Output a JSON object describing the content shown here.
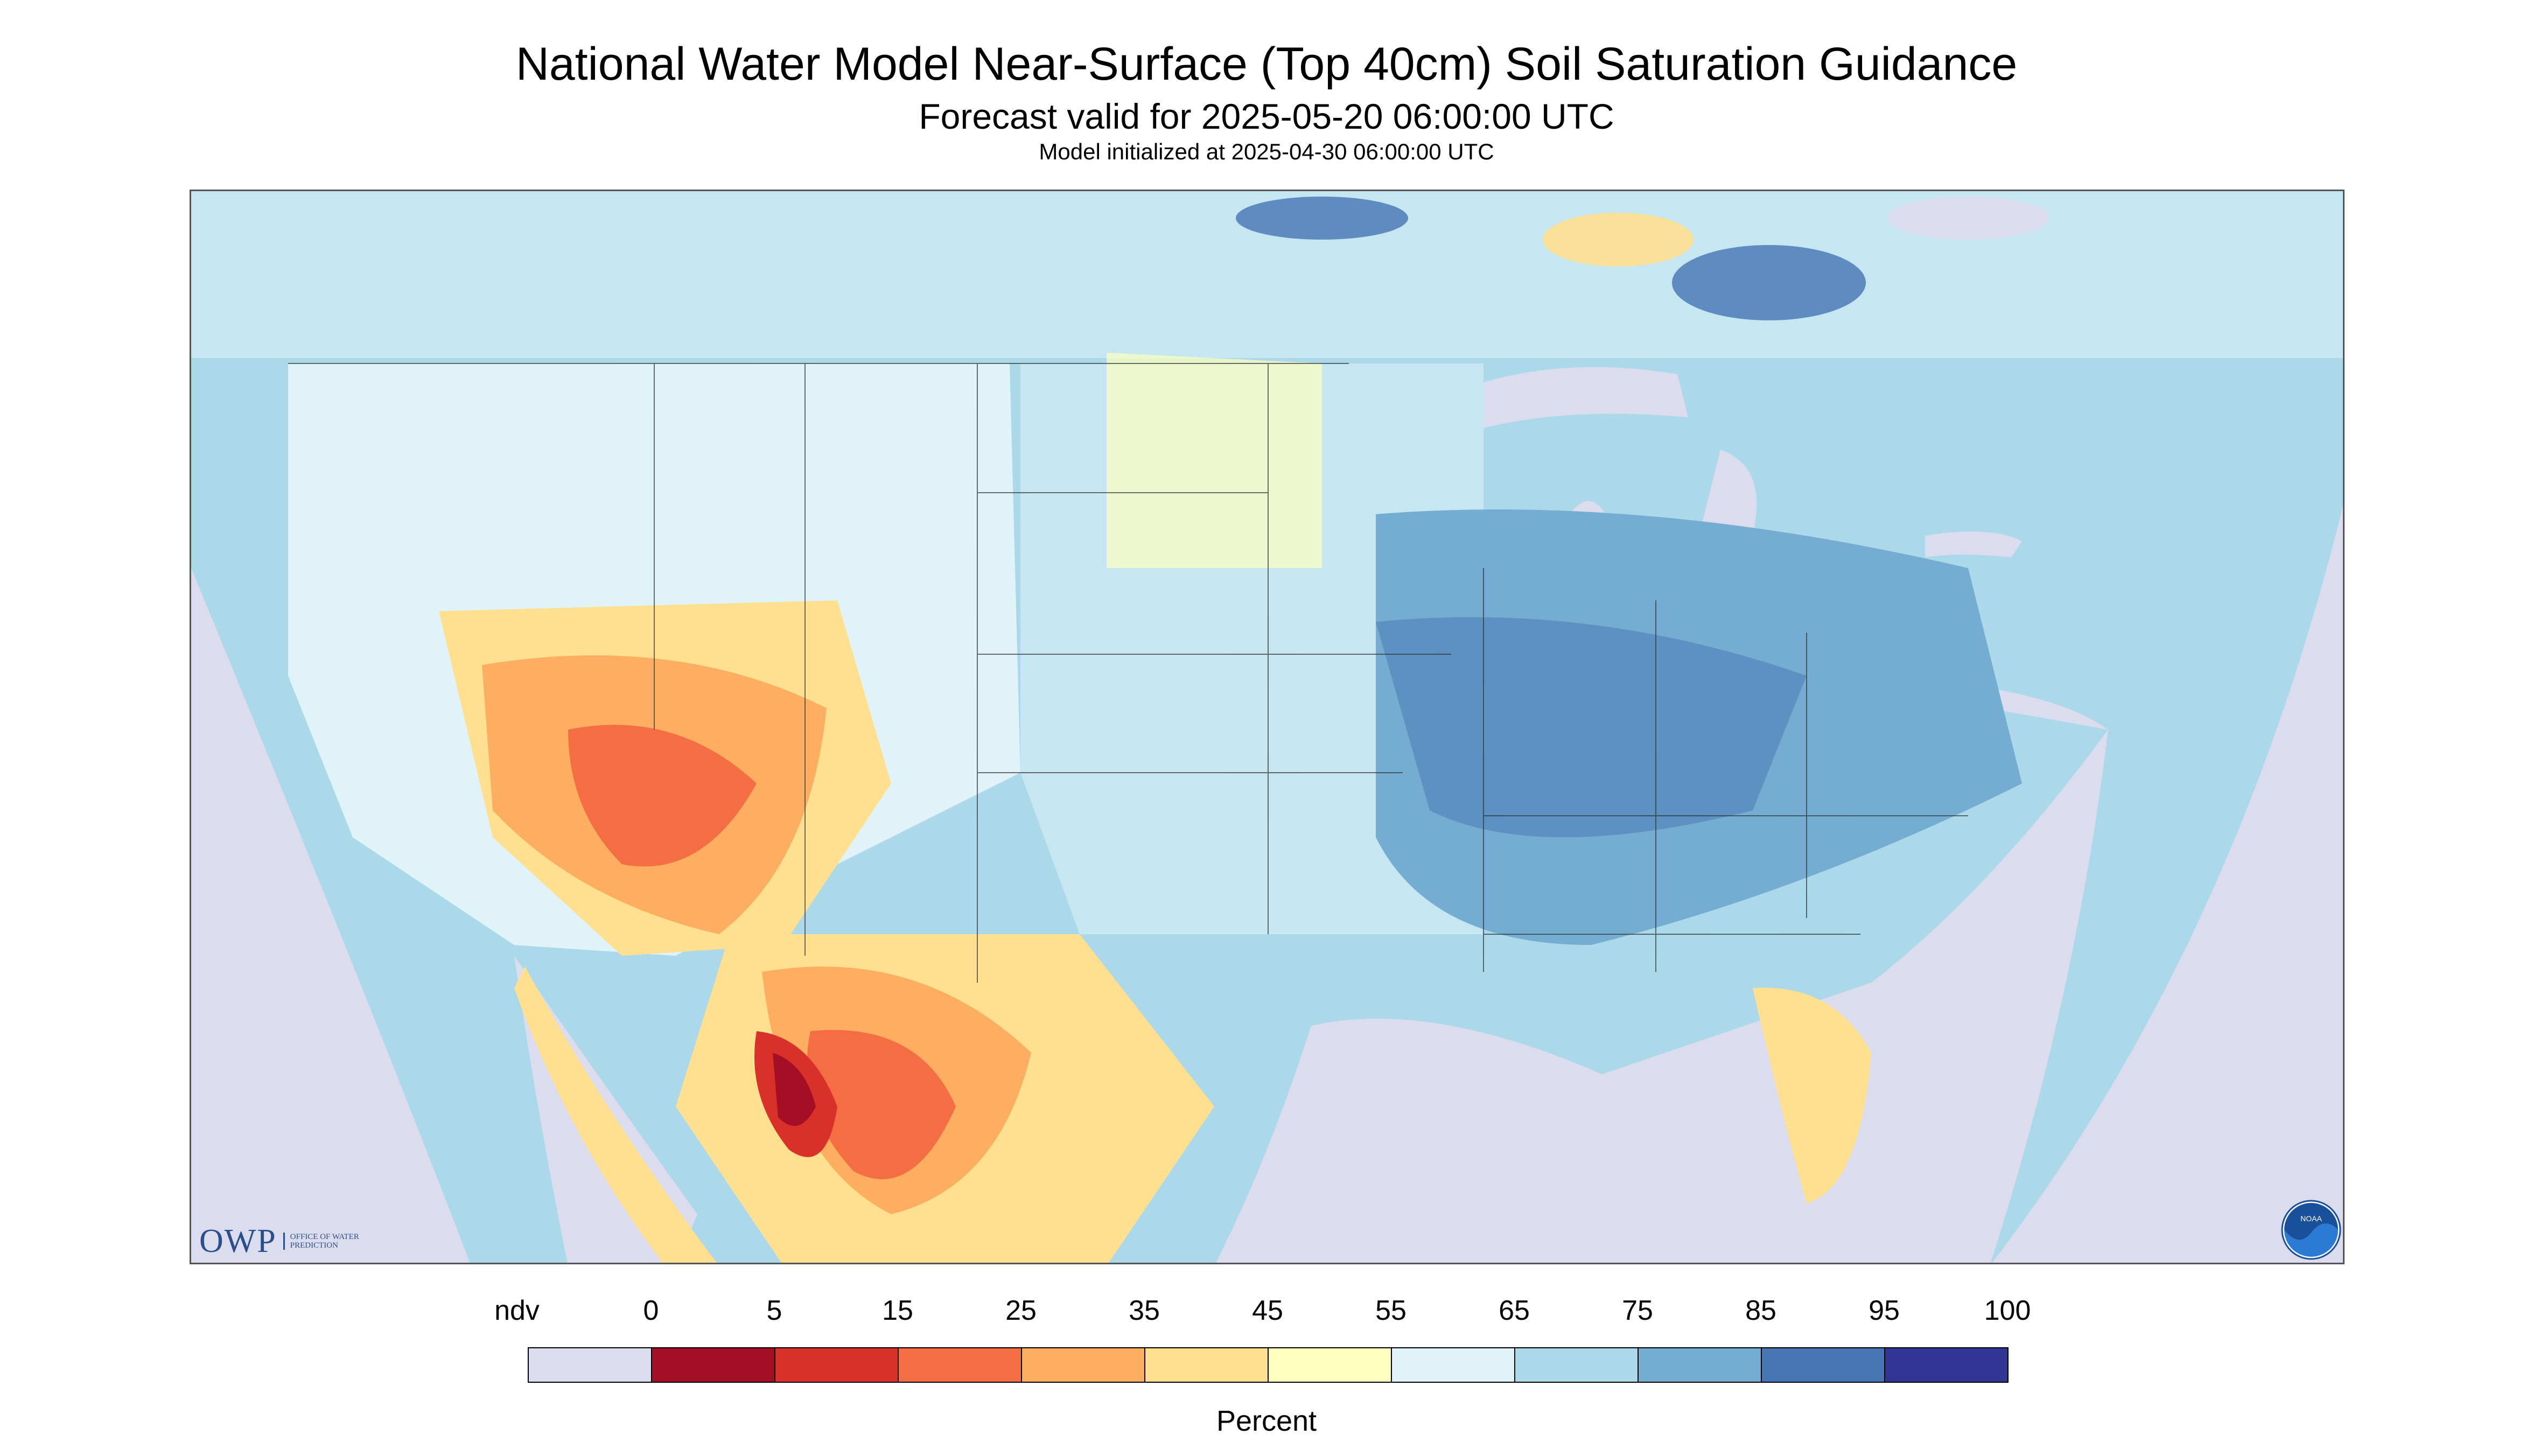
{
  "header": {
    "title": "National Water Model Near-Surface (Top 40cm) Soil Saturation Guidance",
    "subtitle": "Forecast valid for 2025-05-20 06:00:00 UTC",
    "init": "Model initialized at 2025-04-30 06:00:00 UTC"
  },
  "map": {
    "background_ndv_color": "#dcdcef",
    "ocean_color": "#dcdcef",
    "border_color": "#333333"
  },
  "logos": {
    "owp_text": "OWP",
    "owp_subtext": "OFFICE OF WATER PREDICTION",
    "noaa_text": "NOAA"
  },
  "legend": {
    "labels": [
      "ndv",
      "0",
      "5",
      "15",
      "25",
      "35",
      "45",
      "55",
      "65",
      "75",
      "85",
      "95",
      "100"
    ],
    "colors": [
      "#dcdcef",
      "#a50f25",
      "#d9312a",
      "#f46d43",
      "#fdae61",
      "#fee090",
      "#ffffbf",
      "#e0f3f8",
      "#abd9e9",
      "#74add1",
      "#4575b4",
      "#313695"
    ],
    "title": "Percent"
  }
}
